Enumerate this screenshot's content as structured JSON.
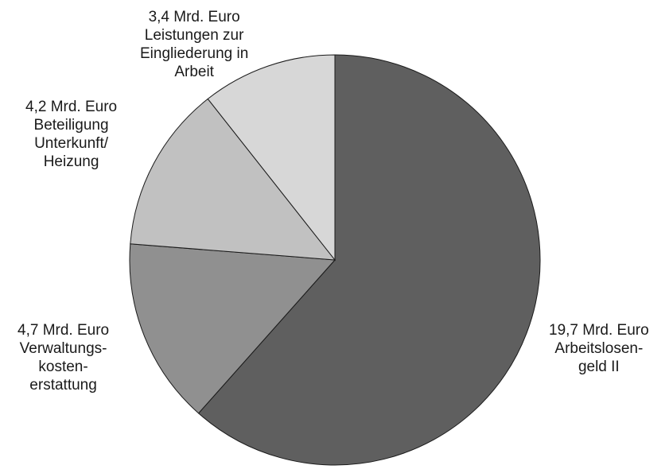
{
  "chart_data": {
    "type": "pie",
    "title": "",
    "unit": "Mrd. Euro",
    "slices": [
      {
        "value": 19.7,
        "value_label": "19,7 Mrd. Euro",
        "label_lines": [
          "Arbeitslosen-",
          "geld II"
        ],
        "color": "#5f5f5f"
      },
      {
        "value": 4.7,
        "value_label": "4,7 Mrd. Euro",
        "label_lines": [
          "Verwaltungs-",
          "kosten-",
          "erstattung"
        ],
        "color": "#909090"
      },
      {
        "value": 4.2,
        "value_label": "4,2 Mrd. Euro",
        "label_lines": [
          "Beteiligung",
          "Unterkunft/",
          "Heizung"
        ],
        "color": "#c1c1c1"
      },
      {
        "value": 3.4,
        "value_label": "3,4 Mrd. Euro",
        "label_lines": [
          "Leistungen zur",
          "Eingliederung in",
          "Arbeit"
        ],
        "color": "#d7d7d7"
      }
    ],
    "start": "12 o'clock",
    "direction": "clockwise",
    "legend": "none"
  }
}
